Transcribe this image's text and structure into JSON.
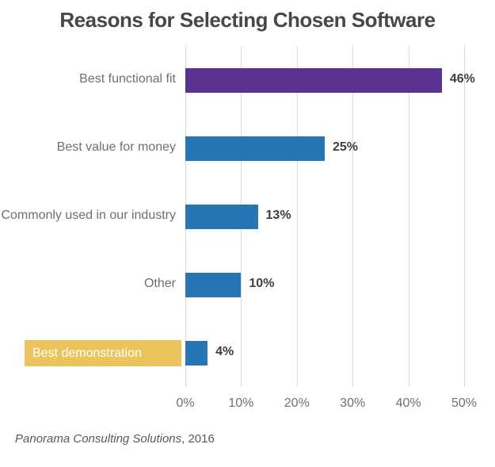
{
  "title": "Reasons for Selecting Chosen Software",
  "source": {
    "name": "Panorama Consulting Solutions",
    "suffix": ", 2016"
  },
  "chart_data": {
    "type": "bar",
    "orientation": "horizontal",
    "title": "Reasons for Selecting Chosen Software",
    "categories": [
      "Best functional fit",
      "Best value for money",
      "Commonly used in our industry",
      "Other",
      "Best demonstration"
    ],
    "values": [
      46,
      25,
      13,
      10,
      4
    ],
    "value_labels": [
      "46%",
      "25%",
      "13%",
      "10%",
      "4%"
    ],
    "bar_colors": [
      "#5B3292",
      "#2776B4",
      "#2776B4",
      "#2776B4",
      "#2776B4"
    ],
    "highlighted_category": {
      "index": 4,
      "label": "Best demonstration",
      "box_color": "#EBC45C",
      "text_color": "#FFFFFF"
    },
    "xlabel": "",
    "ylabel": "",
    "x_ticks": [
      "0%",
      "10%",
      "20%",
      "30%",
      "40%",
      "50%"
    ],
    "x_tick_values": [
      0,
      10,
      20,
      30,
      40,
      50
    ],
    "xlim": [
      0,
      50
    ],
    "grid": true,
    "legend": null,
    "colors": {
      "grid": "#DCDCDC",
      "label": "#6F6F6F",
      "value": "#3F3F3F",
      "title": "#474747",
      "source": "#595959"
    }
  }
}
